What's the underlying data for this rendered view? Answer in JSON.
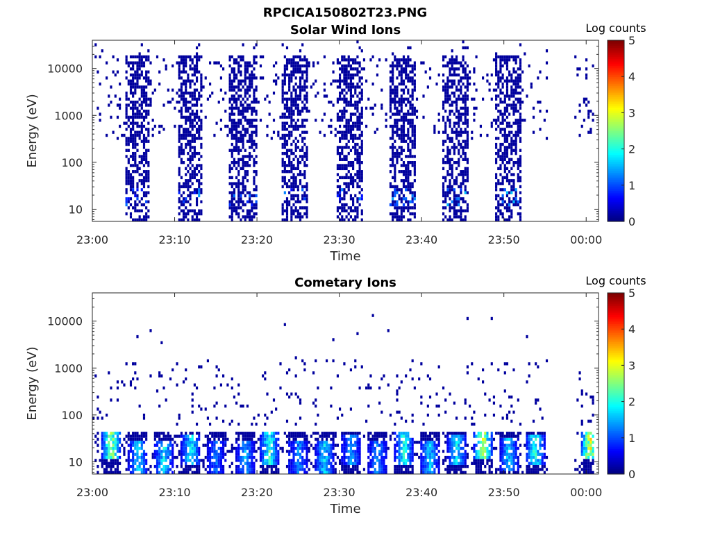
{
  "figure_title": "RPCICA150802T23.PNG",
  "chart_data": [
    {
      "type": "heatmap",
      "title": "Solar Wind Ions",
      "xlabel": "Time",
      "ylabel": "Energy (eV)",
      "x_ticks": [
        "23:00",
        "23:10",
        "23:20",
        "23:30",
        "23:40",
        "23:50",
        "00:00"
      ],
      "x_tick_minutes": [
        0,
        10,
        20,
        30,
        40,
        50,
        60
      ],
      "xlim_minutes": [
        0,
        61.5
      ],
      "y_ticks": [
        "10",
        "100",
        "1000",
        "10000"
      ],
      "y_tick_values": [
        10,
        100,
        1000,
        10000
      ],
      "yscale": "log",
      "ylim": [
        5.5,
        40000
      ],
      "colorbar": {
        "label": "Log counts",
        "ticks": [
          "0",
          "1",
          "2",
          "3",
          "4",
          "5"
        ],
        "range": [
          0,
          5
        ],
        "colormap": "jet"
      },
      "bursts": [
        {
          "t_start": 4.0,
          "t_end": 7.0,
          "peak_energy": 20,
          "peak_log_counts": 1.2
        },
        {
          "t_start": 10.3,
          "t_end": 13.5,
          "peak_energy": 20,
          "peak_log_counts": 1.4
        },
        {
          "t_start": 16.7,
          "t_end": 20.0,
          "peak_energy": 20,
          "peak_log_counts": 1.2
        },
        {
          "t_start": 23.1,
          "t_end": 26.2,
          "peak_energy": 20,
          "peak_log_counts": 1.3
        },
        {
          "t_start": 29.6,
          "t_end": 32.8,
          "peak_energy": 20,
          "peak_log_counts": 1.3
        },
        {
          "t_start": 36.0,
          "t_end": 39.3,
          "peak_energy": 20,
          "peak_log_counts": 1.6
        },
        {
          "t_start": 42.5,
          "t_end": 45.8,
          "peak_energy": 20,
          "peak_log_counts": 1.6
        },
        {
          "t_start": 48.9,
          "t_end": 52.2,
          "peak_energy": 20,
          "peak_log_counts": 1.6
        }
      ],
      "background_energy_range": [
        300,
        20000
      ],
      "data_gap_minutes": [
        55.3,
        58.5
      ]
    },
    {
      "type": "heatmap",
      "title": "Cometary Ions",
      "xlabel": "Time",
      "ylabel": "Energy (eV)",
      "x_ticks": [
        "23:00",
        "23:10",
        "23:20",
        "23:30",
        "23:40",
        "23:50",
        "00:00"
      ],
      "x_tick_minutes": [
        0,
        10,
        20,
        30,
        40,
        50,
        60
      ],
      "xlim_minutes": [
        0,
        61.5
      ],
      "y_ticks": [
        "10",
        "100",
        "1000",
        "10000"
      ],
      "y_tick_values": [
        10,
        100,
        1000,
        10000
      ],
      "yscale": "log",
      "ylim": [
        5.5,
        40000
      ],
      "colorbar": {
        "label": "Log counts",
        "ticks": [
          "0",
          "1",
          "2",
          "3",
          "4",
          "5"
        ],
        "range": [
          0,
          5
        ],
        "colormap": "jet"
      },
      "hotspots": [
        {
          "t": 2.3,
          "energy": 25,
          "log_counts": 3.2
        },
        {
          "t": 5.6,
          "energy": 13,
          "log_counts": 2.1
        },
        {
          "t": 8.7,
          "energy": 13,
          "log_counts": 2.2
        },
        {
          "t": 12.0,
          "energy": 18,
          "log_counts": 2.3
        },
        {
          "t": 15.0,
          "energy": 13,
          "log_counts": 1.4
        },
        {
          "t": 18.6,
          "energy": 13,
          "log_counts": 1.8
        },
        {
          "t": 21.5,
          "energy": 20,
          "log_counts": 2.6
        },
        {
          "t": 25.1,
          "energy": 13,
          "log_counts": 1.6
        },
        {
          "t": 28.2,
          "energy": 13,
          "log_counts": 2.1
        },
        {
          "t": 31.5,
          "energy": 18,
          "log_counts": 1.8
        },
        {
          "t": 34.7,
          "energy": 13,
          "log_counts": 1.6
        },
        {
          "t": 37.9,
          "energy": 20,
          "log_counts": 2.4
        },
        {
          "t": 41.0,
          "energy": 13,
          "log_counts": 2.0
        },
        {
          "t": 44.3,
          "energy": 18,
          "log_counts": 2.2
        },
        {
          "t": 47.5,
          "energy": 25,
          "log_counts": 3.4
        },
        {
          "t": 50.6,
          "energy": 14,
          "log_counts": 2.0
        },
        {
          "t": 53.8,
          "energy": 18,
          "log_counts": 2.5
        },
        {
          "t": 60.5,
          "energy": 25,
          "log_counts": 3.6
        }
      ],
      "background_energy_range": [
        60,
        1500
      ],
      "data_gap_minutes": [
        55.3,
        58.5
      ]
    }
  ]
}
